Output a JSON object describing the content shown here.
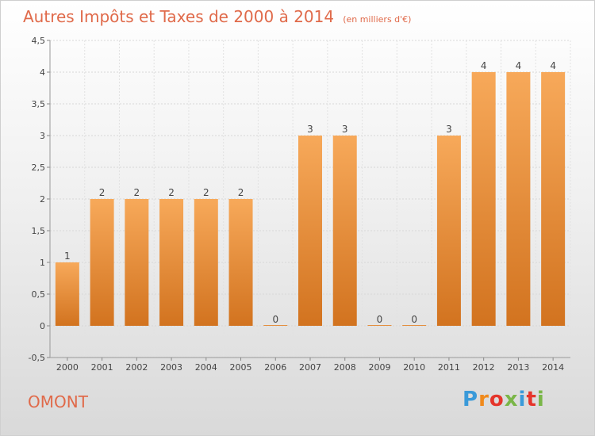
{
  "header": {
    "title": "Autres Impôts et Taxes de 2000 à 2014",
    "subtitle": "(en milliers d'€)"
  },
  "footer": {
    "place": "OMONT",
    "brand": "Proxiti",
    "brand_colors": [
      "#3a9ad9",
      "#f08a1c",
      "#e5352b",
      "#7ab648",
      "#3a9ad9",
      "#e5352b",
      "#7ab648"
    ]
  },
  "chart_data": {
    "type": "bar",
    "categories": [
      "2000",
      "2001",
      "2002",
      "2003",
      "2004",
      "2005",
      "2006",
      "2007",
      "2008",
      "2009",
      "2010",
      "2011",
      "2012",
      "2013",
      "2014"
    ],
    "values": [
      1,
      2,
      2,
      2,
      2,
      2,
      0,
      3,
      3,
      0,
      0,
      3,
      4,
      4,
      4
    ],
    "value_labels": [
      "1",
      "2",
      "2",
      "2",
      "2",
      "2",
      "0",
      "3",
      "3",
      "0",
      "0",
      "3",
      "4",
      "4",
      "4"
    ],
    "yticks": [
      "-0,5",
      "0",
      "0,5",
      "1",
      "1,5",
      "2",
      "2,5",
      "3",
      "3,5",
      "4",
      "4,5"
    ],
    "ytick_values": [
      -0.5,
      0,
      0.5,
      1,
      1.5,
      2,
      2.5,
      3,
      3.5,
      4,
      4.5
    ],
    "ylim": [
      -0.5,
      4.5
    ],
    "grid": true,
    "bar_color": "#ef8f3a"
  }
}
